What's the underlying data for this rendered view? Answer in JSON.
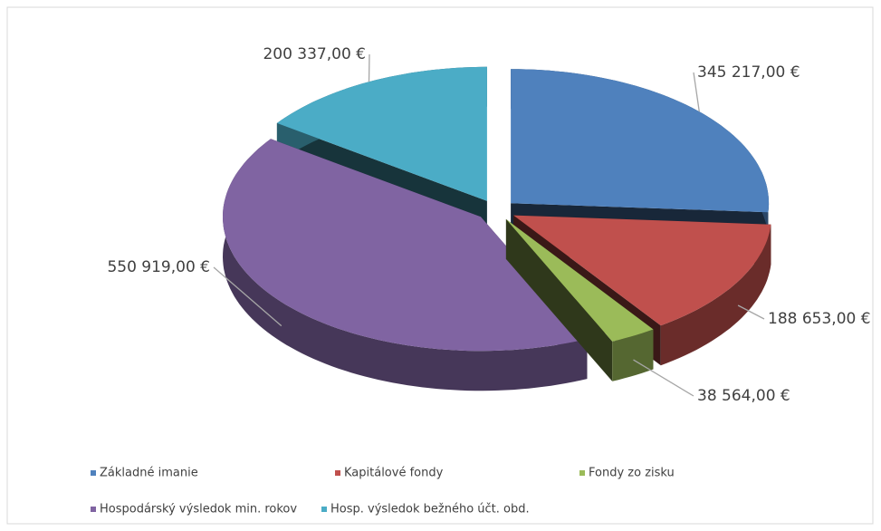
{
  "chart_data": {
    "type": "pie3d",
    "categories": [
      "Základné imanie",
      "Kapitálové fondy",
      "Fondy zo zisku",
      "Hospodárský výsledok min. rokov",
      "Hosp. výsledok bežného účt. obd."
    ],
    "values": [
      345217,
      188653,
      38564,
      550919,
      200337
    ],
    "value_labels": [
      "345 217,00 €",
      "188 653,00 €",
      "38 564,00 €",
      "550 919,00 €",
      "200 337,00 €"
    ],
    "colors": [
      "#4f81bd",
      "#c0504d",
      "#9bbb59",
      "#8064a2",
      "#4bacc6"
    ],
    "legend": "bottom"
  }
}
